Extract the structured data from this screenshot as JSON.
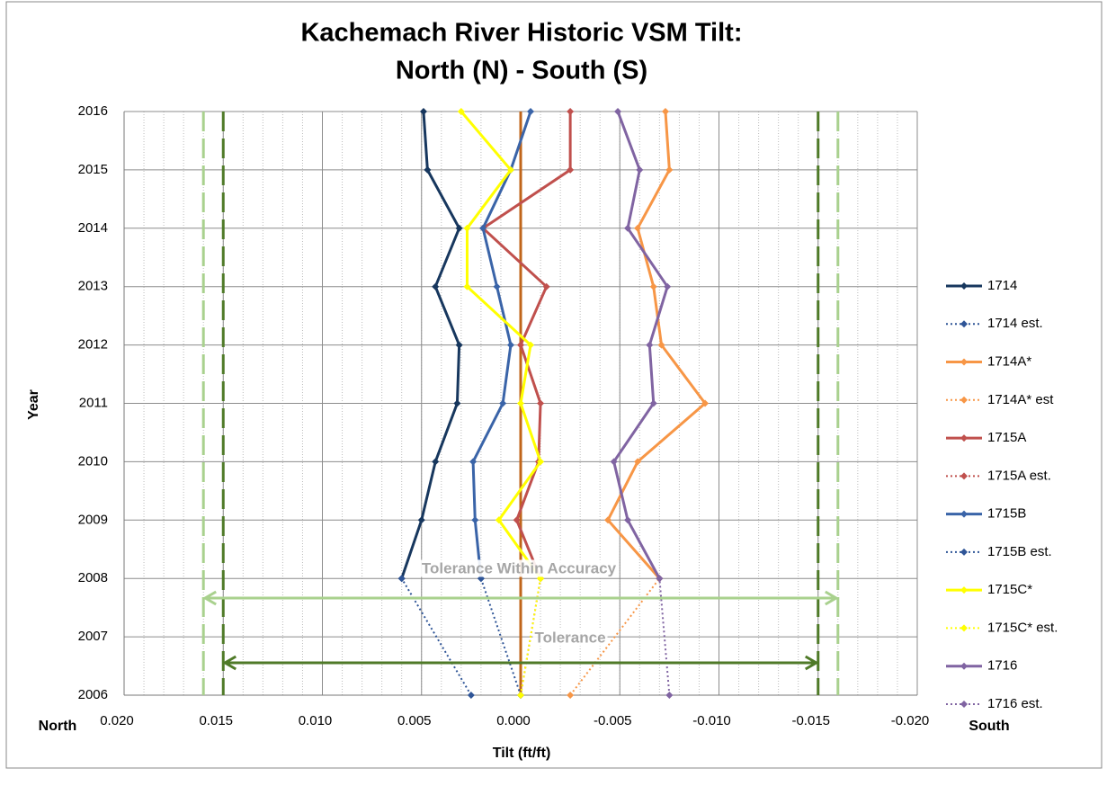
{
  "chart_data": {
    "type": "line",
    "orientation": "horizontal",
    "title": [
      "Kachemach River Historic VSM Tilt:",
      "North (N) - South (S)"
    ],
    "x_label": "Tilt (ft/ft)",
    "y_label": "Year",
    "x_end_labels": [
      "North",
      "South"
    ],
    "xlim": [
      0.02,
      -0.02
    ],
    "xticks": [
      {
        "value": 0.02,
        "label": "0.020"
      },
      0.015,
      {
        "value": 0.01,
        "label": "0.010"
      },
      0.005,
      {
        "value": 0,
        "label": "0.000"
      },
      -0.005,
      {
        "value": -0.01,
        "label": "-0.010"
      },
      -0.015,
      {
        "value": -0.02,
        "label": "-0.020"
      }
    ],
    "x_minor_step": 0.001,
    "ylim": [
      2006,
      2016
    ],
    "yticks": [
      2006,
      2007,
      2008,
      2009,
      2010,
      2011,
      2012,
      2013,
      2014,
      2015,
      2016
    ],
    "grid": true,
    "legend": "right",
    "y": [
      2008,
      2009,
      2010,
      2011,
      2012,
      2013,
      2014,
      2015,
      2016
    ],
    "series": [
      {
        "name": "1714",
        "color": "#17375e",
        "values": [
          0.006,
          0.005,
          0.0043,
          0.0032,
          0.0031,
          0.0043,
          0.0031,
          0.0047,
          0.0049
        ]
      },
      {
        "name": "1714 est.",
        "color": "#2f5597",
        "dashed": true,
        "y": [
          2006,
          2008
        ],
        "values": [
          0.0025,
          0.006
        ]
      },
      {
        "name": "1714A*",
        "color": "#f79646",
        "values": [
          -0.007,
          -0.0044,
          -0.0059,
          -0.0093,
          -0.0071,
          -0.0067,
          -0.0059,
          -0.0075,
          -0.0073
        ]
      },
      {
        "name": "1714A* est",
        "color": "#f79646",
        "dashed": true,
        "y": [
          2006,
          2008
        ],
        "values": [
          -0.0025,
          -0.007
        ]
      },
      {
        "name": "1715A",
        "color": "#c0504d",
        "values": [
          -0.001,
          0.0002,
          -0.0009,
          -0.001,
          0.0,
          -0.0013,
          0.0019,
          -0.0025,
          -0.0025
        ]
      },
      {
        "name": "1715A est.",
        "color": "#c0504d",
        "dashed": true,
        "y": [
          2006,
          2008
        ],
        "values": [
          0.0,
          -0.001
        ]
      },
      {
        "name": "1715B",
        "color": "#3a64a8",
        "values": [
          0.002,
          0.0023,
          0.0024,
          0.0009,
          0.0005,
          0.0012,
          0.0019,
          0.0005,
          -0.0005
        ]
      },
      {
        "name": "1715B est.",
        "color": "#2f5597",
        "dashed": true,
        "y": [
          2006,
          2008
        ],
        "values": [
          0.0,
          0.002
        ]
      },
      {
        "name": "1715C*",
        "color": "#ffff00",
        "values": [
          -0.001,
          0.0011,
          -0.001,
          0.0,
          -0.0005,
          0.0027,
          0.0027,
          0.0005,
          0.003
        ]
      },
      {
        "name": "1715C* est.",
        "color": "#ffff00",
        "dashed": true,
        "y": [
          2006,
          2008
        ],
        "values": [
          0.0,
          -0.001
        ]
      },
      {
        "name": "1716",
        "color": "#8064a2",
        "values": [
          -0.007,
          -0.0054,
          -0.0047,
          -0.0067,
          -0.0065,
          -0.0074,
          -0.0054,
          -0.006,
          -0.0049
        ]
      },
      {
        "name": "1716 est.",
        "color": "#8064a2",
        "dashed": true,
        "y": [
          2006,
          2008
        ],
        "values": [
          -0.0075,
          -0.007
        ]
      }
    ],
    "reference_lines": [
      {
        "value": 0,
        "color": "#c0651a",
        "style": "solid"
      },
      {
        "value": 0.015,
        "color": "#4f7a28",
        "style": "dashed"
      },
      {
        "value": -0.015,
        "color": "#4f7a28",
        "style": "dashed"
      },
      {
        "value": 0.016,
        "color": "#a9d18e",
        "style": "dashed"
      },
      {
        "value": -0.016,
        "color": "#a9d18e",
        "style": "dashed"
      }
    ],
    "annotations": [
      {
        "text": "Tolerance Within Accuracy",
        "from": 0.016,
        "to": -0.016,
        "color": "#a9d18e"
      },
      {
        "text": "Tolerance",
        "from": 0.015,
        "to": -0.015,
        "color": "#4f7a28"
      }
    ]
  }
}
